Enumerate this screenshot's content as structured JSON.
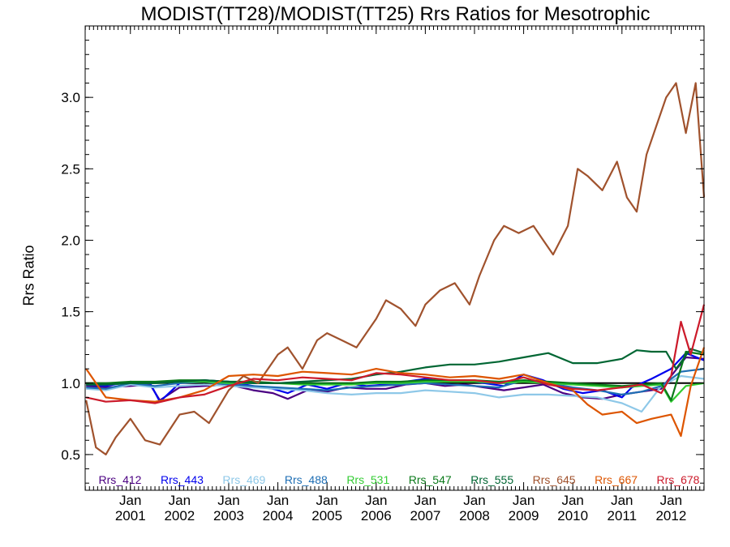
{
  "chart_data": {
    "type": "line",
    "title": "MODIST(TT28)/MODIST(TT25)  Rrs Ratios for Mesotrophic",
    "xlabel": "",
    "ylabel": "Rrs Ratio",
    "xlim": [
      2000.08,
      2012.67
    ],
    "ylim": [
      0.25,
      3.5
    ],
    "yticks": [
      {
        "value": 0.5,
        "label": "0.5"
      },
      {
        "value": 1.0,
        "label": "1.0"
      },
      {
        "value": 1.5,
        "label": "1.5"
      },
      {
        "value": 2.0,
        "label": "2.0"
      },
      {
        "value": 2.5,
        "label": "2.5"
      },
      {
        "value": 3.0,
        "label": "3.0"
      }
    ],
    "xticks": [
      {
        "value": 2001,
        "label1": "Jan",
        "label2": "2001"
      },
      {
        "value": 2002,
        "label1": "Jan",
        "label2": "2002"
      },
      {
        "value": 2003,
        "label1": "Jan",
        "label2": "2003"
      },
      {
        "value": 2004,
        "label1": "Jan",
        "label2": "2004"
      },
      {
        "value": 2005,
        "label1": "Jan",
        "label2": "2005"
      },
      {
        "value": 2006,
        "label1": "Jan",
        "label2": "2006"
      },
      {
        "value": 2007,
        "label1": "Jan",
        "label2": "2007"
      },
      {
        "value": 2008,
        "label1": "Jan",
        "label2": "2008"
      },
      {
        "value": 2009,
        "label1": "Jan",
        "label2": "2009"
      },
      {
        "value": 2010,
        "label1": "Jan",
        "label2": "2010"
      },
      {
        "value": 2011,
        "label1": "Jan",
        "label2": "2011"
      },
      {
        "value": 2012,
        "label1": "Jan",
        "label2": "2012"
      }
    ],
    "reference_line": 1.0,
    "legend_placement": "bottom, single row inside plot",
    "series": [
      {
        "name": "Rrs_412",
        "color": "#4b0082",
        "x": [
          2000.1,
          2000.5,
          2001,
          2001.4,
          2001.6,
          2002,
          2002.5,
          2003,
          2003.5,
          2003.9,
          2004.2,
          2004.6,
          2005,
          2005.4,
          2005.8,
          2006.2,
          2006.6,
          2007,
          2007.4,
          2007.8,
          2008.2,
          2008.6,
          2009,
          2009.4,
          2009.8,
          2010.2,
          2010.6,
          2011,
          2011.4,
          2011.8,
          2012,
          2012.3,
          2012.67
        ],
        "values": [
          0.98,
          0.97,
          0.98,
          0.99,
          0.88,
          0.97,
          0.98,
          0.99,
          0.95,
          0.93,
          0.89,
          0.95,
          0.94,
          0.97,
          0.96,
          0.96,
          0.99,
          1.0,
          0.98,
          0.99,
          0.97,
          0.95,
          0.97,
          0.99,
          0.93,
          0.9,
          0.89,
          0.92,
          0.94,
          0.96,
          1.05,
          1.18,
          1.17
        ]
      },
      {
        "name": "Rrs_443",
        "color": "#0000ee",
        "x": [
          2000.1,
          2000.5,
          2001,
          2001.4,
          2001.6,
          2002,
          2002.5,
          2003,
          2003.5,
          2003.9,
          2004.2,
          2004.6,
          2005,
          2005.4,
          2005.8,
          2006.2,
          2006.6,
          2007,
          2007.4,
          2007.8,
          2008.2,
          2008.6,
          2009,
          2009.4,
          2009.8,
          2010.2,
          2010.6,
          2011,
          2011.2,
          2011.6,
          2012,
          2012.3,
          2012.67
        ],
        "values": [
          0.99,
          0.98,
          1.01,
          1.0,
          0.87,
          1.0,
          1.02,
          1.01,
          0.98,
          0.96,
          0.93,
          0.99,
          0.96,
          1.0,
          0.98,
          0.99,
          1.01,
          1.03,
          1.01,
          1.02,
          1.0,
          0.98,
          1.06,
          1.02,
          0.96,
          0.93,
          0.95,
          0.9,
          0.97,
          1.03,
          1.1,
          1.21,
          1.16
        ]
      },
      {
        "name": "Rrs_469",
        "color": "#8ec8e8",
        "x": [
          2000.1,
          2000.5,
          2001,
          2001.5,
          2002,
          2002.5,
          2003,
          2003.5,
          2004,
          2004.5,
          2005,
          2005.5,
          2006,
          2006.5,
          2007,
          2007.5,
          2008,
          2008.5,
          2009,
          2009.5,
          2010,
          2010.5,
          2011,
          2011.4,
          2011.8,
          2012.2,
          2012.67
        ],
        "values": [
          0.96,
          0.95,
          0.99,
          0.97,
          0.98,
          0.99,
          0.98,
          0.97,
          0.96,
          0.95,
          0.93,
          0.92,
          0.93,
          0.93,
          0.95,
          0.94,
          0.93,
          0.9,
          0.92,
          0.92,
          0.91,
          0.9,
          0.86,
          0.8,
          0.98,
          1.05,
          1.03
        ]
      },
      {
        "name": "Rrs_488",
        "color": "#1e6eb4",
        "x": [
          2000.1,
          2000.5,
          2001,
          2001.5,
          2002,
          2002.5,
          2003,
          2003.5,
          2004,
          2004.5,
          2005,
          2005.5,
          2006,
          2006.5,
          2007,
          2007.5,
          2008,
          2008.5,
          2009,
          2009.5,
          2010,
          2010.5,
          2011,
          2011.4,
          2011.8,
          2012.2,
          2012.67
        ],
        "values": [
          0.97,
          0.96,
          1.0,
          0.98,
          1.0,
          1.01,
          0.99,
          0.98,
          0.97,
          0.96,
          0.95,
          0.97,
          0.98,
          0.99,
          1.0,
          0.99,
          0.98,
          0.97,
          1.02,
          1.0,
          0.97,
          0.95,
          0.92,
          0.94,
          0.98,
          1.08,
          1.1
        ]
      },
      {
        "name": "Rrs_531",
        "color": "#33cc33",
        "x": [
          2000.1,
          2000.5,
          2001,
          2001.5,
          2002,
          2002.5,
          2003,
          2003.5,
          2004,
          2004.5,
          2005,
          2005.5,
          2006,
          2006.5,
          2007,
          2007.5,
          2008,
          2008.5,
          2009,
          2009.5,
          2010,
          2010.5,
          2011,
          2011.4,
          2011.8,
          2012,
          2012.3,
          2012.67
        ],
        "values": [
          0.99,
          0.99,
          1.0,
          1.0,
          1.01,
          1.01,
          1.0,
          1.0,
          1.0,
          0.99,
          0.99,
          0.99,
          1.0,
          1.0,
          1.01,
          1.01,
          1.01,
          1.0,
          1.01,
          1.0,
          0.99,
          0.98,
          0.97,
          0.98,
          0.99,
          0.87,
          0.98,
          1.0
        ]
      },
      {
        "name": "Rrs_547",
        "color": "#0a7a1a",
        "x": [
          2000.1,
          2000.5,
          2001,
          2001.5,
          2002,
          2002.5,
          2003,
          2003.5,
          2004,
          2004.5,
          2005,
          2005.5,
          2006,
          2006.5,
          2007,
          2007.5,
          2008,
          2008.5,
          2009,
          2009.5,
          2010,
          2010.5,
          2011,
          2011.4,
          2011.8,
          2012,
          2012.3,
          2012.67
        ],
        "values": [
          1.0,
          1.0,
          1.01,
          1.01,
          1.02,
          1.02,
          1.01,
          1.01,
          1.0,
          1.0,
          1.0,
          1.0,
          1.01,
          1.01,
          1.02,
          1.02,
          1.02,
          1.01,
          1.02,
          1.01,
          1.0,
          0.99,
          0.98,
          0.99,
          1.0,
          0.88,
          1.22,
          1.2
        ]
      },
      {
        "name": "Rrs_555",
        "color": "#006633",
        "x": [
          2000.1,
          2000.5,
          2001,
          2001.5,
          2002,
          2002.5,
          2003,
          2003.5,
          2004,
          2004.5,
          2005,
          2005.5,
          2006,
          2006.5,
          2007,
          2007.5,
          2008,
          2008.5,
          2009,
          2009.5,
          2010,
          2010.5,
          2011,
          2011.3,
          2011.6,
          2011.9,
          2012.1,
          2012.4,
          2012.67
        ],
        "values": [
          0.99,
          0.99,
          1.0,
          1.0,
          1.01,
          1.02,
          1.01,
          1.0,
          1.0,
          1.01,
          1.02,
          1.03,
          1.06,
          1.08,
          1.11,
          1.13,
          1.13,
          1.15,
          1.18,
          1.21,
          1.14,
          1.14,
          1.17,
          1.23,
          1.22,
          1.22,
          1.1,
          1.24,
          1.21
        ]
      },
      {
        "name": "Rrs_645",
        "color": "#a0522d",
        "x": [
          2000.1,
          2000.3,
          2000.5,
          2000.7,
          2001,
          2001.3,
          2001.6,
          2002,
          2002.3,
          2002.6,
          2003,
          2003.3,
          2003.6,
          2004,
          2004.2,
          2004.5,
          2004.8,
          2005,
          2005.3,
          2005.6,
          2006,
          2006.2,
          2006.5,
          2006.8,
          2007,
          2007.3,
          2007.6,
          2007.9,
          2008.1,
          2008.4,
          2008.6,
          2008.9,
          2009.2,
          2009.4,
          2009.6,
          2009.9,
          2010.1,
          2010.3,
          2010.6,
          2010.9,
          2011.1,
          2011.3,
          2011.5,
          2011.7,
          2011.9,
          2012.1,
          2012.3,
          2012.5,
          2012.67
        ],
        "values": [
          0.88,
          0.55,
          0.5,
          0.62,
          0.75,
          0.6,
          0.57,
          0.78,
          0.8,
          0.72,
          0.95,
          1.05,
          1.0,
          1.2,
          1.25,
          1.1,
          1.3,
          1.35,
          1.3,
          1.25,
          1.45,
          1.58,
          1.52,
          1.4,
          1.55,
          1.65,
          1.7,
          1.55,
          1.75,
          2.0,
          2.1,
          2.05,
          2.1,
          2.0,
          1.9,
          2.1,
          2.5,
          2.45,
          2.35,
          2.55,
          2.3,
          2.2,
          2.6,
          2.8,
          3.0,
          3.1,
          2.75,
          3.1,
          2.3
        ]
      },
      {
        "name": "Rrs_667",
        "color": "#dd5500",
        "x": [
          2000.1,
          2000.5,
          2001,
          2001.5,
          2002,
          2002.5,
          2003,
          2003.5,
          2004,
          2004.5,
          2005,
          2005.5,
          2006,
          2006.5,
          2007,
          2007.5,
          2008,
          2008.5,
          2009,
          2009.5,
          2010,
          2010.3,
          2010.6,
          2011,
          2011.3,
          2011.6,
          2012,
          2012.2,
          2012.4,
          2012.67
        ],
        "values": [
          1.1,
          0.9,
          0.88,
          0.87,
          0.9,
          0.95,
          1.05,
          1.06,
          1.05,
          1.08,
          1.07,
          1.06,
          1.1,
          1.07,
          1.06,
          1.04,
          1.05,
          1.03,
          1.06,
          1.0,
          0.95,
          0.85,
          0.78,
          0.8,
          0.72,
          0.75,
          0.78,
          0.63,
          0.98,
          1.25
        ]
      },
      {
        "name": "Rrs_678",
        "color": "#cc1a2a",
        "x": [
          2000.1,
          2000.5,
          2001,
          2001.5,
          2002,
          2002.5,
          2003,
          2003.5,
          2004,
          2004.5,
          2005,
          2005.5,
          2006,
          2006.5,
          2007,
          2007.5,
          2008,
          2008.5,
          2009,
          2009.5,
          2010,
          2010.5,
          2011,
          2011.4,
          2011.8,
          2012,
          2012.2,
          2012.4,
          2012.67
        ],
        "values": [
          0.9,
          0.87,
          0.88,
          0.86,
          0.9,
          0.92,
          0.98,
          1.03,
          1.02,
          1.04,
          1.03,
          1.02,
          1.07,
          1.06,
          1.04,
          1.02,
          1.02,
          1.0,
          1.04,
          0.99,
          0.96,
          0.95,
          0.97,
          0.99,
          0.93,
          1.05,
          1.43,
          1.2,
          1.55
        ]
      }
    ]
  }
}
